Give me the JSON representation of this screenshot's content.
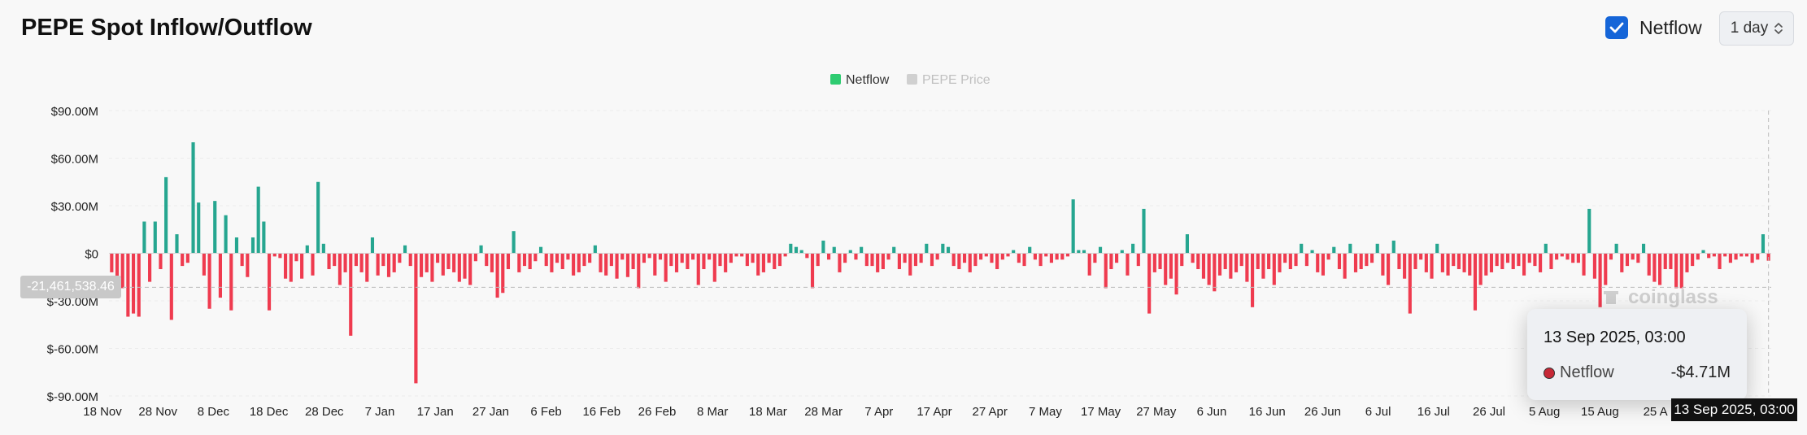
{
  "header": {
    "title": "PEPE Spot Inflow/Outflow",
    "netflow_label": "Netflow",
    "netflow_checked": true,
    "interval": "1 day"
  },
  "colors": {
    "positive": "#26a690",
    "negative": "#ef3b4f",
    "checkbox": "#1565d8",
    "legend_netflow": "#2ecc71",
    "legend_price": "#d0d0d0"
  },
  "tooltip": {
    "date": "13 Sep 2025, 03:00",
    "series": "Netflow",
    "value": "-$4.71M"
  },
  "crosshair": {
    "x_label": "13 Sep 2025, 03:00",
    "y_label": "-21,461,538.46"
  },
  "watermark": "coinglass",
  "chart_data": {
    "type": "bar",
    "legend": [
      "Netflow",
      "PEPE Price"
    ],
    "legend_position": "top-center",
    "y_ticks": [
      "$90.00M",
      "$60.00M",
      "$30.00M",
      "$0",
      "$-30.00M",
      "$-60.00M",
      "$-90.00M"
    ],
    "y_tick_values": [
      90,
      60,
      30,
      0,
      -30,
      -60,
      -90
    ],
    "ylim": [
      -90,
      90
    ],
    "y_unit": "M USD",
    "x_ticks": [
      "18 Nov",
      "28 Nov",
      "8 Dec",
      "18 Dec",
      "28 Dec",
      "7 Jan",
      "17 Jan",
      "27 Jan",
      "6 Feb",
      "16 Feb",
      "26 Feb",
      "8 Mar",
      "18 Mar",
      "28 Mar",
      "7 Apr",
      "17 Apr",
      "27 Apr",
      "7 May",
      "17 May",
      "27 May",
      "6 Jun",
      "16 Jun",
      "26 Jun",
      "6 Jul",
      "16 Jul",
      "26 Jul",
      "5 Aug",
      "15 Aug",
      "25 A"
    ],
    "x_start": "18 Nov 2024",
    "x_end": "13 Sep 2025",
    "grid": true,
    "series": [
      {
        "name": "Netflow",
        "values": [
          -12,
          -18,
          -22,
          -40,
          -38,
          -40,
          20,
          -18,
          20,
          -10,
          48,
          -42,
          12,
          -8,
          -6,
          70,
          32,
          -14,
          -35,
          33,
          -28,
          24,
          -36,
          10,
          -8,
          -15,
          10,
          42,
          20,
          -36,
          -2,
          -3,
          -16,
          -18,
          -5,
          -16,
          5,
          -14,
          45,
          6,
          -10,
          -8,
          -20,
          -12,
          -52,
          -8,
          -12,
          -18,
          10,
          -14,
          -8,
          -15,
          -12,
          -6,
          5,
          -8,
          -82,
          -15,
          -12,
          -18,
          -6,
          -14,
          -10,
          -12,
          -18,
          -16,
          -20,
          -5,
          5,
          -8,
          -12,
          -28,
          -25,
          -10,
          14,
          -12,
          -8,
          -10,
          -5,
          4,
          -8,
          -12,
          -6,
          -10,
          -4,
          -14,
          -12,
          -8,
          -6,
          5,
          -12,
          -14,
          -8,
          -16,
          -4,
          -15,
          -10,
          -22,
          -6,
          -3,
          -14,
          -4,
          -18,
          -8,
          -12,
          -6,
          -10,
          -4,
          -20,
          -10,
          -4,
          -18,
          -8,
          -12,
          -6,
          -2,
          -2,
          -8,
          -6,
          -14,
          -12,
          -6,
          -10,
          -8,
          -2,
          6,
          4,
          2,
          -3,
          -22,
          -8,
          8,
          -4,
          4,
          -12,
          -6,
          2,
          -4,
          4,
          -8,
          -8,
          -12,
          -10,
          -4,
          4,
          -10,
          -6,
          -14,
          -8,
          -6,
          6,
          -8,
          -4,
          6,
          4,
          -8,
          -10,
          -6,
          -12,
          -8,
          -4,
          -2,
          -6,
          -10,
          -4,
          -2,
          2,
          -6,
          -8,
          4,
          -4,
          -8,
          -2,
          -6,
          -4,
          -4,
          -2,
          34,
          2,
          2,
          -14,
          -6,
          4,
          -22,
          -10,
          -6,
          2,
          -14,
          6,
          -8,
          28,
          -38,
          -12,
          -10,
          -20,
          -16,
          -26,
          -8,
          12,
          -6,
          -10,
          -16,
          -20,
          -24,
          -14,
          -10,
          -16,
          -12,
          -8,
          -18,
          -34,
          -10,
          -16,
          -10,
          -20,
          -12,
          -6,
          -10,
          -8,
          6,
          -8,
          2,
          -12,
          -14,
          -4,
          4,
          -10,
          -16,
          6,
          -12,
          -10,
          -8,
          -6,
          6,
          -14,
          -20,
          8,
          -10,
          -16,
          -38,
          -10,
          -4,
          -12,
          -16,
          6,
          -12,
          -14,
          -8,
          -10,
          -12,
          -14,
          -36,
          -20,
          -14,
          -12,
          -8,
          -10,
          -6,
          -10,
          -8,
          -14,
          -6,
          -8,
          -12,
          6,
          -10,
          -4,
          -2,
          -4,
          -6,
          -6,
          -14,
          28,
          -16,
          -34,
          -20,
          -4,
          6,
          -12,
          -8,
          -4,
          -6,
          6,
          -14,
          -18,
          -20,
          -10,
          -10,
          -22,
          -22,
          -12,
          -8,
          -4,
          2,
          -3,
          -2,
          -10,
          -2,
          -6,
          -4,
          -2,
          -2,
          -6,
          -4,
          12,
          -4.71
        ]
      },
      {
        "name": "PEPE Price",
        "hidden": true,
        "values": []
      }
    ]
  }
}
